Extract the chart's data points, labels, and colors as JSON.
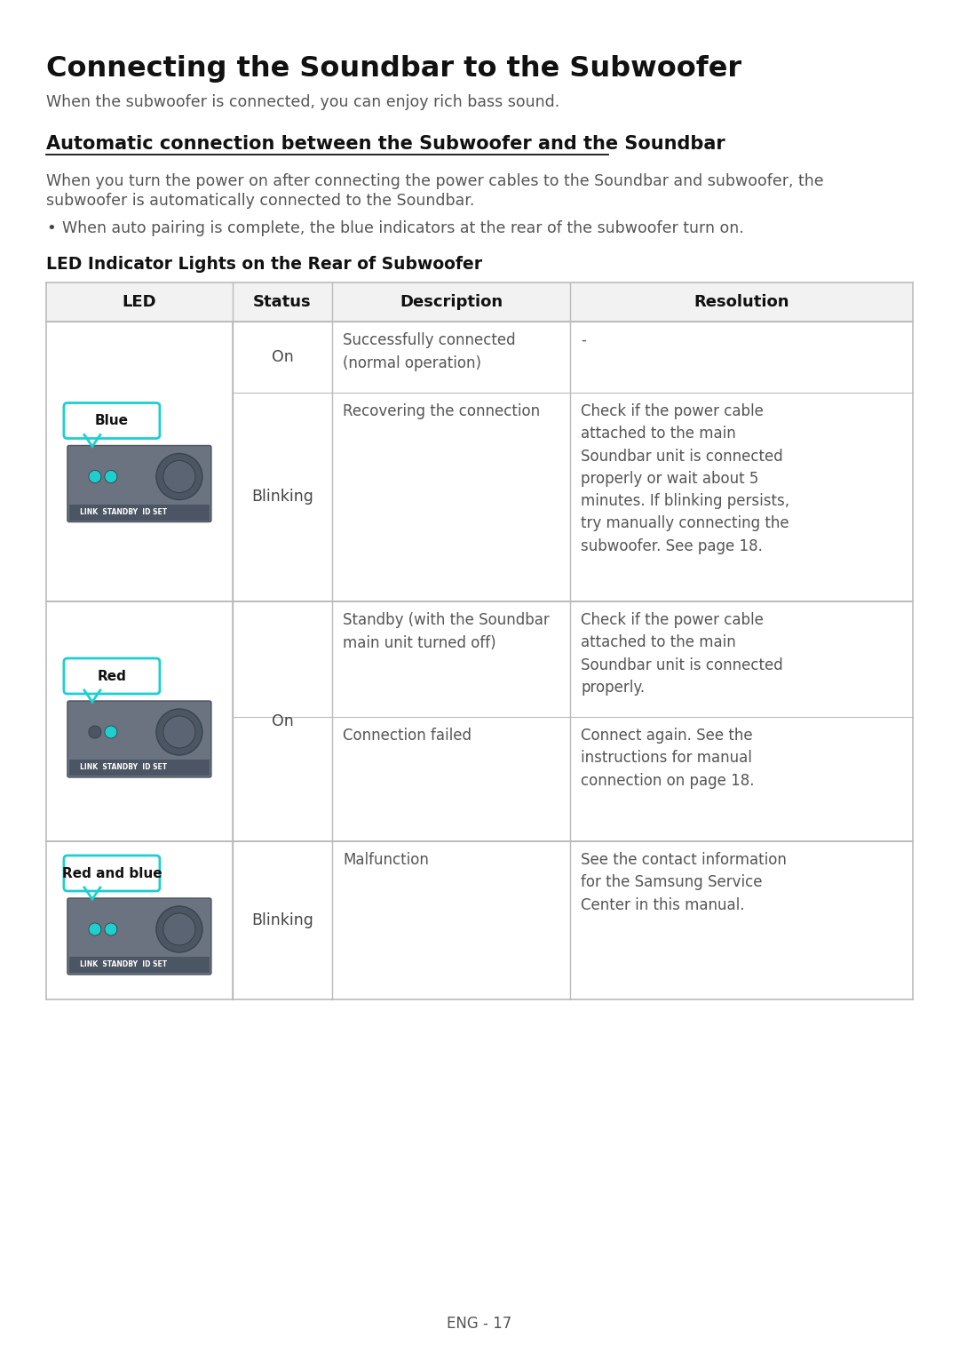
{
  "title": "Connecting the Soundbar to the Subwoofer",
  "subtitle": "When the subwoofer is connected, you can enjoy rich bass sound.",
  "section_title": "Automatic connection between the Subwoofer and the Soundbar",
  "section_body_line1": "When you turn the power on after connecting the power cables to the Soundbar and subwoofer, the",
  "section_body_line2": "subwoofer is automatically connected to the Soundbar.",
  "bullet": "When auto pairing is complete, the blue indicators at the rear of the subwoofer turn on.",
  "table_title": "LED Indicator Lights on the Rear of Subwoofer",
  "col_headers": [
    "LED",
    "Status",
    "Description",
    "Resolution"
  ],
  "footer": "ENG - 17",
  "bg_color": "#FFFFFF",
  "border_color": "#BBBBBB",
  "header_bg": "#F2F2F2",
  "device_bg": "#6B7280",
  "device_dark": "#4B5563",
  "cyan_color": "#1ECFCF",
  "text_dark": "#111111",
  "text_mid": "#444444",
  "text_light": "#555555"
}
